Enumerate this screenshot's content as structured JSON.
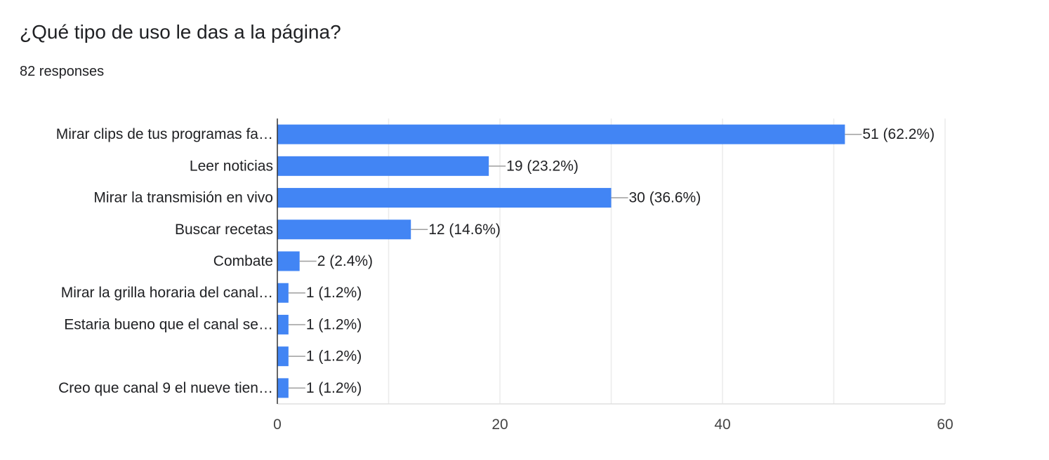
{
  "header": {
    "title": "¿Qué tipo de uso le das a la página?",
    "responses": "82 responses"
  },
  "chart_data": {
    "type": "bar",
    "orientation": "horizontal",
    "categories": [
      "Mirar clips de tus programas fa…",
      "Leer noticias",
      "Mirar la transmisión en vivo",
      "Buscar recetas",
      "Combate",
      "Mirar la grilla horaria del canal…",
      "Estaria bueno que el canal se…",
      "",
      "Creo que canal 9 el nueve tien…"
    ],
    "values": [
      51,
      19,
      30,
      12,
      2,
      1,
      1,
      1,
      1
    ],
    "data_labels": [
      "51 (62.2%)",
      "19 (23.2%)",
      "30 (36.6%)",
      "12 (14.6%)",
      "2 (2.4%)",
      "1 (1.2%)",
      "1 (1.2%)",
      "1 (1.2%)",
      "1 (1.2%)"
    ],
    "xlim": [
      0,
      60
    ],
    "x_ticks": [
      0,
      20,
      40,
      60
    ],
    "grid": true,
    "bar_color": "#4285f4"
  }
}
